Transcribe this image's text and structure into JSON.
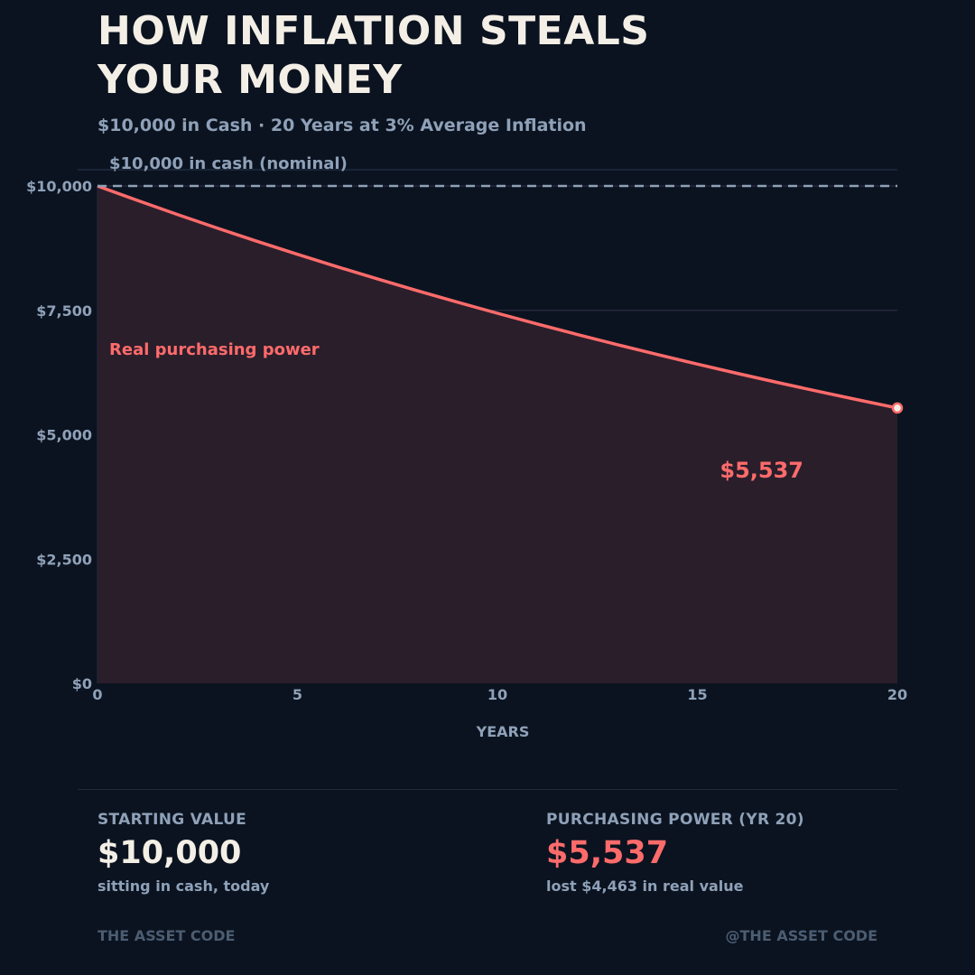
{
  "header": {
    "title_line1": "HOW INFLATION STEALS",
    "title_line2": "YOUR MONEY",
    "subtitle": "$10,000 in Cash  ·  20 Years at 3% Average Inflation"
  },
  "colors": {
    "background": "#0b1320",
    "accent": "#ff6b6b",
    "muted": "#8fa1b8",
    "title": "#f4efe6",
    "area_fill": "#2a1e2b"
  },
  "chart_data": {
    "type": "area",
    "x": [
      0,
      1,
      2,
      3,
      4,
      5,
      6,
      7,
      8,
      9,
      10,
      11,
      12,
      13,
      14,
      15,
      16,
      17,
      18,
      19,
      20
    ],
    "series": [
      {
        "values": [
          10000,
          9709,
          9426,
          9151,
          8885,
          8626,
          8375,
          8131,
          7894,
          7664,
          7441,
          7224,
          7014,
          6810,
          6611,
          6419,
          6232,
          6050,
          5874,
          5703,
          5537
        ]
      }
    ],
    "reference_line": {
      "value": 10000,
      "label": "$10,000 in cash (nominal)",
      "style": "dashed"
    },
    "annotations": [
      {
        "text": "Real purchasing power"
      },
      {
        "text": "$5,537",
        "x": 20,
        "y": 5537
      }
    ],
    "xlabel": "YEARS",
    "ylabel": "",
    "xlim": [
      0,
      20
    ],
    "ylim": [
      0,
      10000
    ],
    "x_ticks": [
      0,
      5,
      10,
      15,
      20
    ],
    "x_tick_labels": [
      "0",
      "5",
      "10",
      "15",
      "20"
    ],
    "y_ticks": [
      0,
      2500,
      5000,
      7500,
      10000
    ],
    "y_tick_labels": [
      "$0",
      "$2,500",
      "$5,000",
      "$7,500",
      "$10,000"
    ],
    "grid": true
  },
  "stats": {
    "left": {
      "label": "STARTING VALUE",
      "value": "$10,000",
      "note": "sitting in cash, today"
    },
    "right": {
      "label": "PURCHASING POWER (YR 20)",
      "value": "$5,537",
      "note": "lost $4,463 in real value"
    }
  },
  "footer": {
    "left": "THE ASSET CODE",
    "right": "@THE ASSET CODE"
  }
}
